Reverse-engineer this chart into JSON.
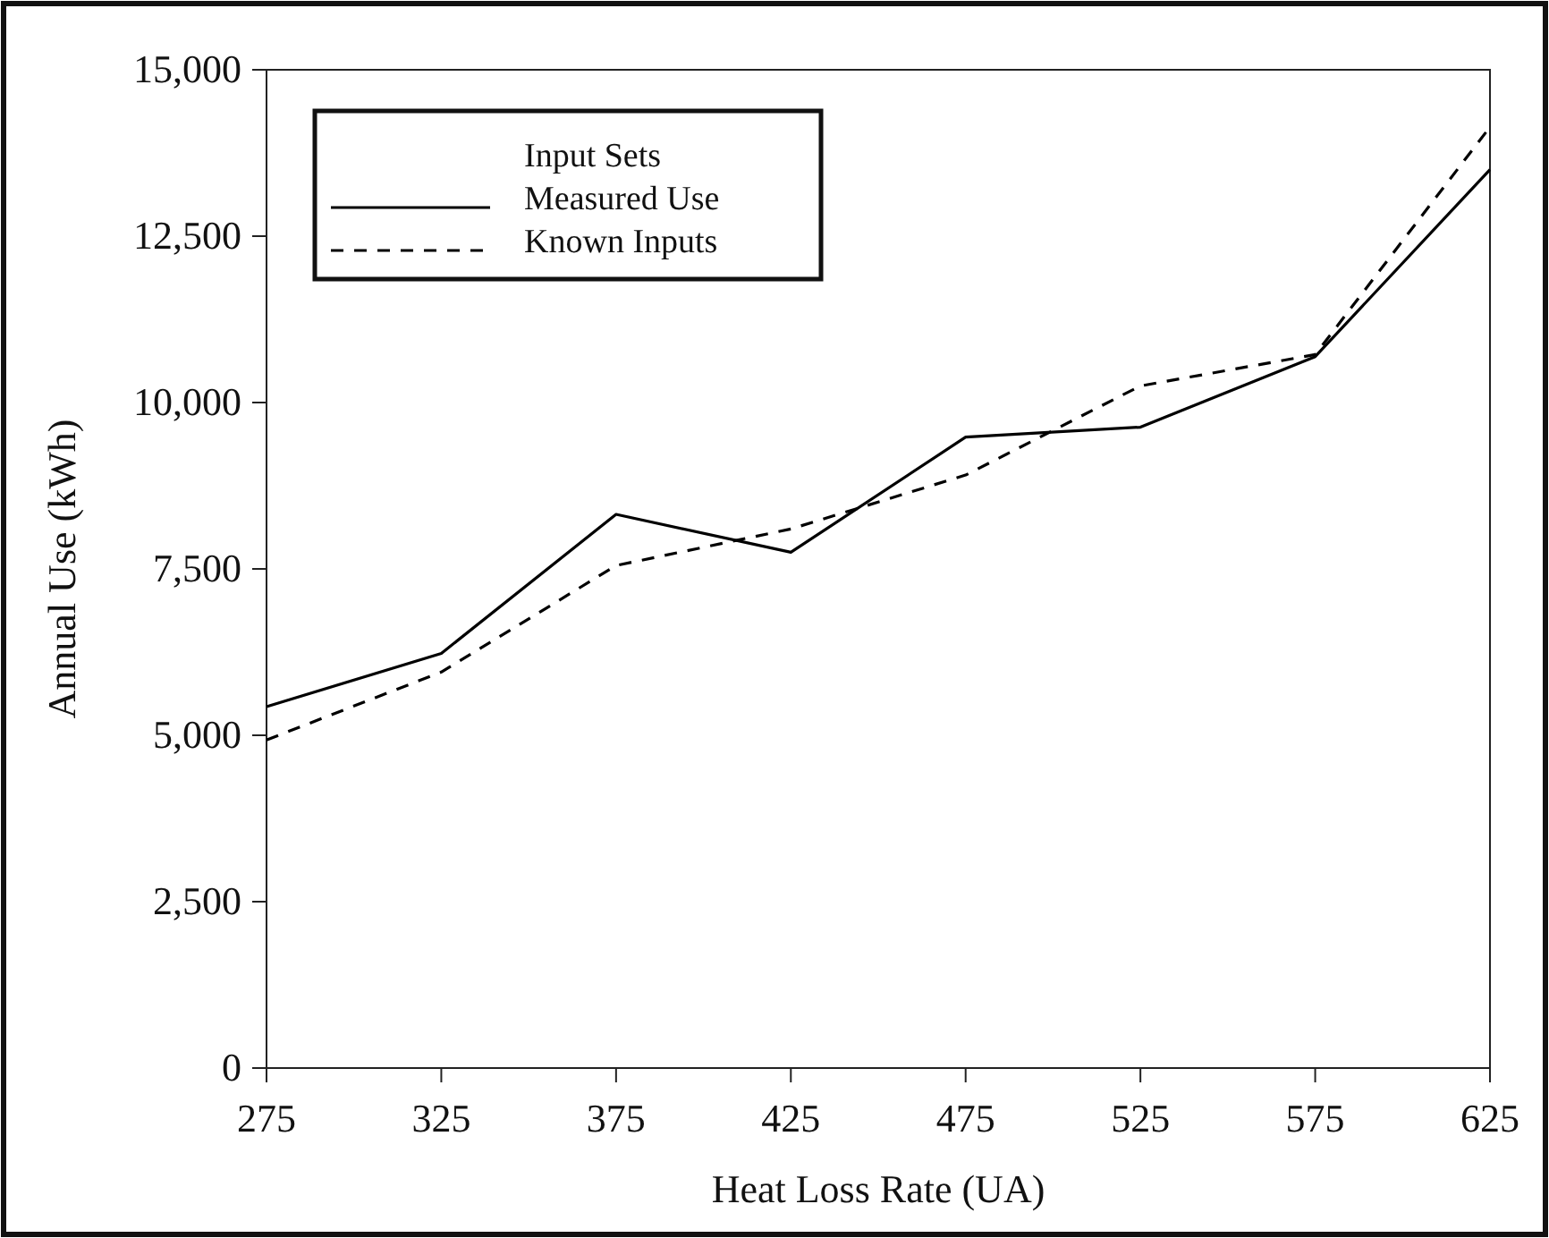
{
  "chart_data": {
    "type": "line",
    "xlabel": "Heat Loss Rate (UA)",
    "ylabel": "Annual Use (kWh)",
    "legend_title": "Input Sets",
    "legend": "top left",
    "grid": false,
    "x": [
      275,
      325,
      375,
      425,
      475,
      525,
      575,
      625
    ],
    "xlim": [
      275,
      625
    ],
    "xticks": [
      275,
      325,
      375,
      425,
      475,
      525,
      575,
      625
    ],
    "ylim": [
      0,
      15000
    ],
    "yticks": [
      {
        "value": 0,
        "label": "0"
      },
      {
        "value": 2500,
        "label": "2,500"
      },
      {
        "value": 5000,
        "label": "5,000"
      },
      {
        "value": 7500,
        "label": "7,500"
      },
      {
        "value": 10000,
        "label": "10,000"
      },
      {
        "value": 12500,
        "label": "12,500"
      },
      {
        "value": 15000,
        "label": "15,000"
      }
    ],
    "series": [
      {
        "name": "Measured Use",
        "color": "#000000",
        "line_style": "solid",
        "values": [
          5430,
          6230,
          8320,
          7750,
          9480,
          9630,
          10690,
          13500
        ]
      },
      {
        "name": "Known Inputs",
        "color": "#000000",
        "line_style": "dashed",
        "values": [
          4930,
          5950,
          7550,
          8100,
          8910,
          10250,
          10720,
          14140
        ]
      }
    ]
  }
}
